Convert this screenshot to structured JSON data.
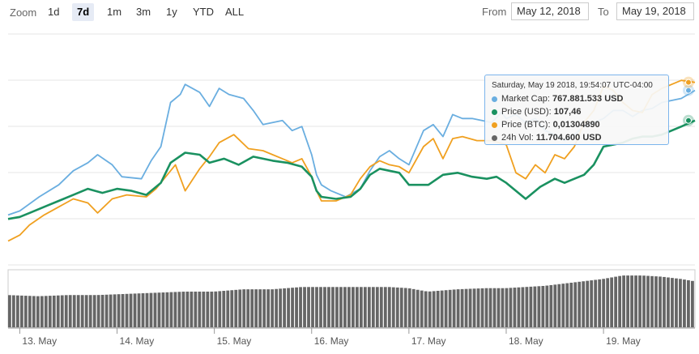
{
  "toolbar": {
    "zoom_label": "Zoom",
    "buttons": [
      "1d",
      "7d",
      "1m",
      "3m",
      "1y",
      "YTD",
      "ALL"
    ],
    "active": "7d",
    "from_label": "From",
    "from_value": "May 12, 2018",
    "to_label": "To",
    "to_value": "May 19, 2018"
  },
  "tooltip": {
    "header": "Saturday, May 19 2018, 19:54:07 UTC-04:00",
    "rows": [
      {
        "label": "Market Cap:",
        "value": "767.881.533 USD",
        "color": "#6aaee0"
      },
      {
        "label": "Price (USD):",
        "value": "107,46",
        "color": "#1a9160"
      },
      {
        "label": "Price (BTC):",
        "value": "0,01304890",
        "color": "#f0a020"
      },
      {
        "label": "24h Vol:",
        "value": "11.704.600 USD",
        "color": "#666666"
      }
    ]
  },
  "chart_data": {
    "type": "line",
    "x_ticks": [
      "13. May",
      "14. May",
      "15. May",
      "16. May",
      "17. May",
      "18. May",
      "19. May"
    ],
    "x_range": [
      12.88,
      19.94
    ],
    "y_range": [
      0,
      100
    ],
    "grid": true,
    "series": [
      {
        "name": "Market Cap",
        "color": "#6aaee0",
        "x": [
          12.88,
          13.0,
          13.2,
          13.4,
          13.55,
          13.7,
          13.8,
          13.95,
          14.05,
          14.25,
          14.35,
          14.45,
          14.55,
          14.65,
          14.7,
          14.85,
          14.95,
          15.05,
          15.15,
          15.3,
          15.4,
          15.5,
          15.6,
          15.7,
          15.8,
          15.9,
          16.0,
          16.05,
          16.1,
          16.2,
          16.35,
          16.5,
          16.6,
          16.7,
          16.8,
          16.9,
          17.0,
          17.15,
          17.25,
          17.35,
          17.45,
          17.55,
          17.65,
          17.75,
          17.85,
          17.95,
          18.0,
          18.1,
          18.2,
          18.3,
          18.4,
          18.5,
          18.6,
          18.7,
          18.8,
          18.9,
          19.0,
          19.1,
          19.2,
          19.3,
          19.4,
          19.5,
          19.6,
          19.7,
          19.8,
          19.94
        ],
        "y": [
          18,
          20,
          27,
          33,
          40,
          44,
          48,
          43,
          37,
          36,
          45,
          52,
          74,
          78,
          83,
          79,
          72,
          81,
          78,
          76,
          70,
          63,
          64,
          65,
          60,
          62,
          48,
          38,
          33,
          30,
          27,
          31,
          40,
          47,
          50,
          46,
          43,
          60,
          63,
          57,
          68,
          66,
          66,
          65,
          64,
          69,
          66,
          68,
          64,
          66,
          60,
          58,
          55,
          58,
          62,
          64,
          66,
          70,
          70,
          67,
          70,
          71,
          74,
          75,
          76,
          80
        ]
      },
      {
        "name": "Price (USD)",
        "color": "#1a9160",
        "x": [
          12.88,
          13.0,
          13.1,
          13.25,
          13.4,
          13.55,
          13.7,
          13.85,
          14.0,
          14.15,
          14.3,
          14.45,
          14.55,
          14.7,
          14.85,
          14.95,
          15.1,
          15.25,
          15.4,
          15.5,
          15.6,
          15.75,
          15.9,
          16.0,
          16.05,
          16.1,
          16.25,
          16.4,
          16.5,
          16.6,
          16.7,
          16.8,
          16.9,
          17.0,
          17.2,
          17.35,
          17.5,
          17.65,
          17.8,
          17.9,
          18.0,
          18.1,
          18.2,
          18.35,
          18.5,
          18.6,
          18.7,
          18.8,
          18.9,
          19.0,
          19.1,
          19.2,
          19.3,
          19.4,
          19.5,
          19.6,
          19.7,
          19.8,
          19.94
        ],
        "y": [
          16,
          17,
          19,
          22,
          25,
          28,
          31,
          29,
          31,
          30,
          28,
          34,
          44,
          49,
          48,
          44,
          46,
          43,
          47,
          46,
          45,
          44,
          42,
          37,
          30,
          27,
          26,
          27,
          31,
          38,
          41,
          40,
          39,
          33,
          33,
          38,
          39,
          37,
          36,
          37,
          34,
          30,
          26,
          32,
          36,
          34,
          36,
          38,
          43,
          52,
          53,
          54,
          56,
          57,
          57,
          58,
          60,
          62,
          65
        ]
      },
      {
        "name": "Price (BTC)",
        "color": "#f0a020",
        "x": [
          12.88,
          13.0,
          13.1,
          13.25,
          13.4,
          13.55,
          13.7,
          13.8,
          13.95,
          14.1,
          14.3,
          14.4,
          14.5,
          14.6,
          14.7,
          14.85,
          14.95,
          15.05,
          15.2,
          15.35,
          15.5,
          15.6,
          15.7,
          15.8,
          15.9,
          16.0,
          16.05,
          16.1,
          16.25,
          16.4,
          16.5,
          16.6,
          16.7,
          16.8,
          16.9,
          17.0,
          17.15,
          17.25,
          17.35,
          17.45,
          17.55,
          17.7,
          17.85,
          18.0,
          18.1,
          18.2,
          18.3,
          18.4,
          18.5,
          18.6,
          18.7,
          18.8,
          18.9,
          19.0,
          19.1,
          19.2,
          19.3,
          19.4,
          19.5,
          19.6,
          19.7,
          19.8,
          19.94
        ],
        "y": [
          5,
          8,
          13,
          18,
          22,
          26,
          24,
          19,
          26,
          28,
          27,
          31,
          37,
          43,
          30,
          41,
          47,
          54,
          58,
          51,
          50,
          48,
          46,
          44,
          46,
          37,
          30,
          25,
          25,
          28,
          36,
          42,
          45,
          43,
          42,
          39,
          52,
          56,
          46,
          56,
          57,
          55,
          55,
          53,
          39,
          36,
          43,
          39,
          48,
          46,
          52,
          64,
          70,
          82,
          80,
          74,
          70,
          69,
          78,
          81,
          83,
          85,
          84
        ]
      }
    ],
    "volume": {
      "name": "24h Vol",
      "color": "#666666",
      "x": [
        12.88,
        13.2,
        13.5,
        13.8,
        14.1,
        14.4,
        14.7,
        15.0,
        15.3,
        15.6,
        15.9,
        16.2,
        16.5,
        16.8,
        17.0,
        17.2,
        17.5,
        17.8,
        18.0,
        18.2,
        18.4,
        18.6,
        18.8,
        19.0,
        19.2,
        19.4,
        19.6,
        19.8,
        19.94
      ],
      "y": [
        28,
        27,
        28,
        28,
        29,
        30,
        31,
        31,
        33,
        33,
        35,
        35,
        35,
        35,
        34,
        31,
        33,
        34,
        34,
        35,
        36,
        38,
        40,
        42,
        45,
        45,
        44,
        42,
        40
      ]
    }
  }
}
